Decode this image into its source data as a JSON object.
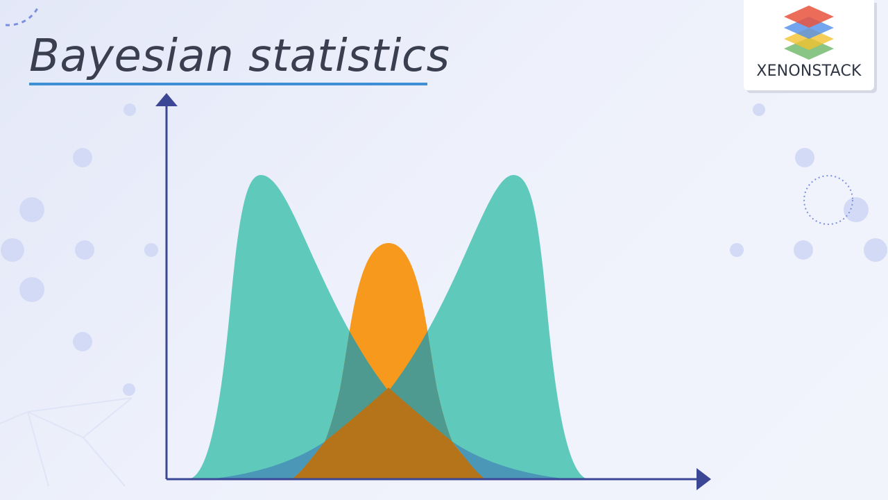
{
  "title": "Bayesian statistics",
  "logo": {
    "text": "XENONSTACK",
    "icon": "stacked-layers-icon",
    "layer_colors": [
      "#e8533c",
      "#4f8ee8",
      "#f2c230",
      "#62b25b"
    ]
  },
  "diagram": {
    "curves": [
      {
        "name": "left-peak",
        "color": "#5fcabc"
      },
      {
        "name": "middle-peak",
        "color": "#f7991c"
      },
      {
        "name": "right-peak",
        "color": "#5fcabc"
      }
    ],
    "axis_color": "#3b4694",
    "overlap_color_teal": "#4e9a90",
    "overlap_color_orange": "#b5741a",
    "tail_color": "#4a97b8"
  }
}
